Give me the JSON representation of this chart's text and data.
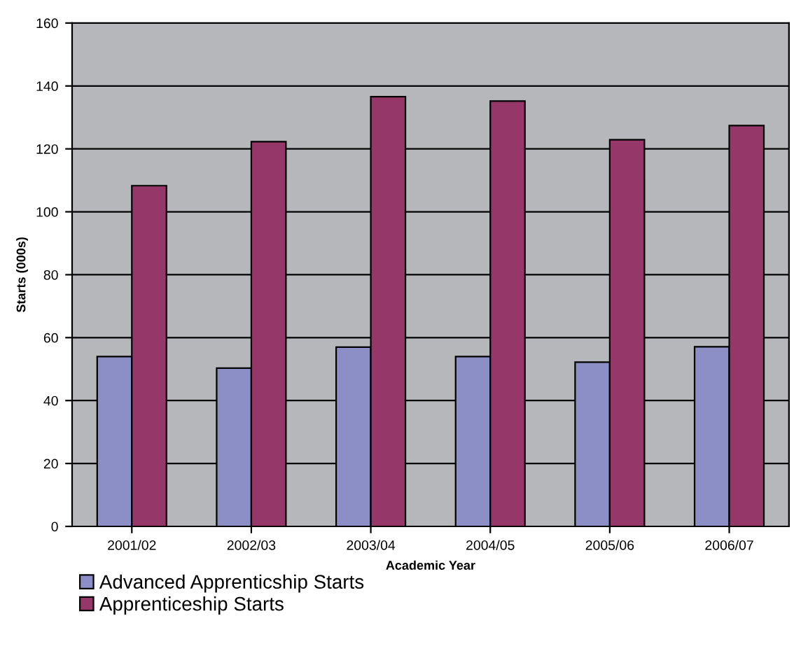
{
  "chart_data": {
    "type": "bar",
    "xlabel": "Academic Year",
    "ylabel": "Starts (000s)",
    "categories": [
      "2001/02",
      "2002/03",
      "2003/04",
      "2004/05",
      "2005/06",
      "2006/07"
    ],
    "series": [
      {
        "name": "Advanced Apprenticship Starts",
        "color": "#8b8fc5",
        "values": [
          54,
          50.3,
          57,
          54,
          52.2,
          57.1
        ]
      },
      {
        "name": "Apprenticeship Starts",
        "color": "#953769",
        "values": [
          108.3,
          122.3,
          136.6,
          135.2,
          122.9,
          127.4
        ]
      }
    ],
    "ylim": [
      0,
      160
    ],
    "yticks": [
      0,
      20,
      40,
      60,
      80,
      100,
      120,
      140,
      160
    ],
    "grid": "y",
    "legend": "bottom left"
  }
}
